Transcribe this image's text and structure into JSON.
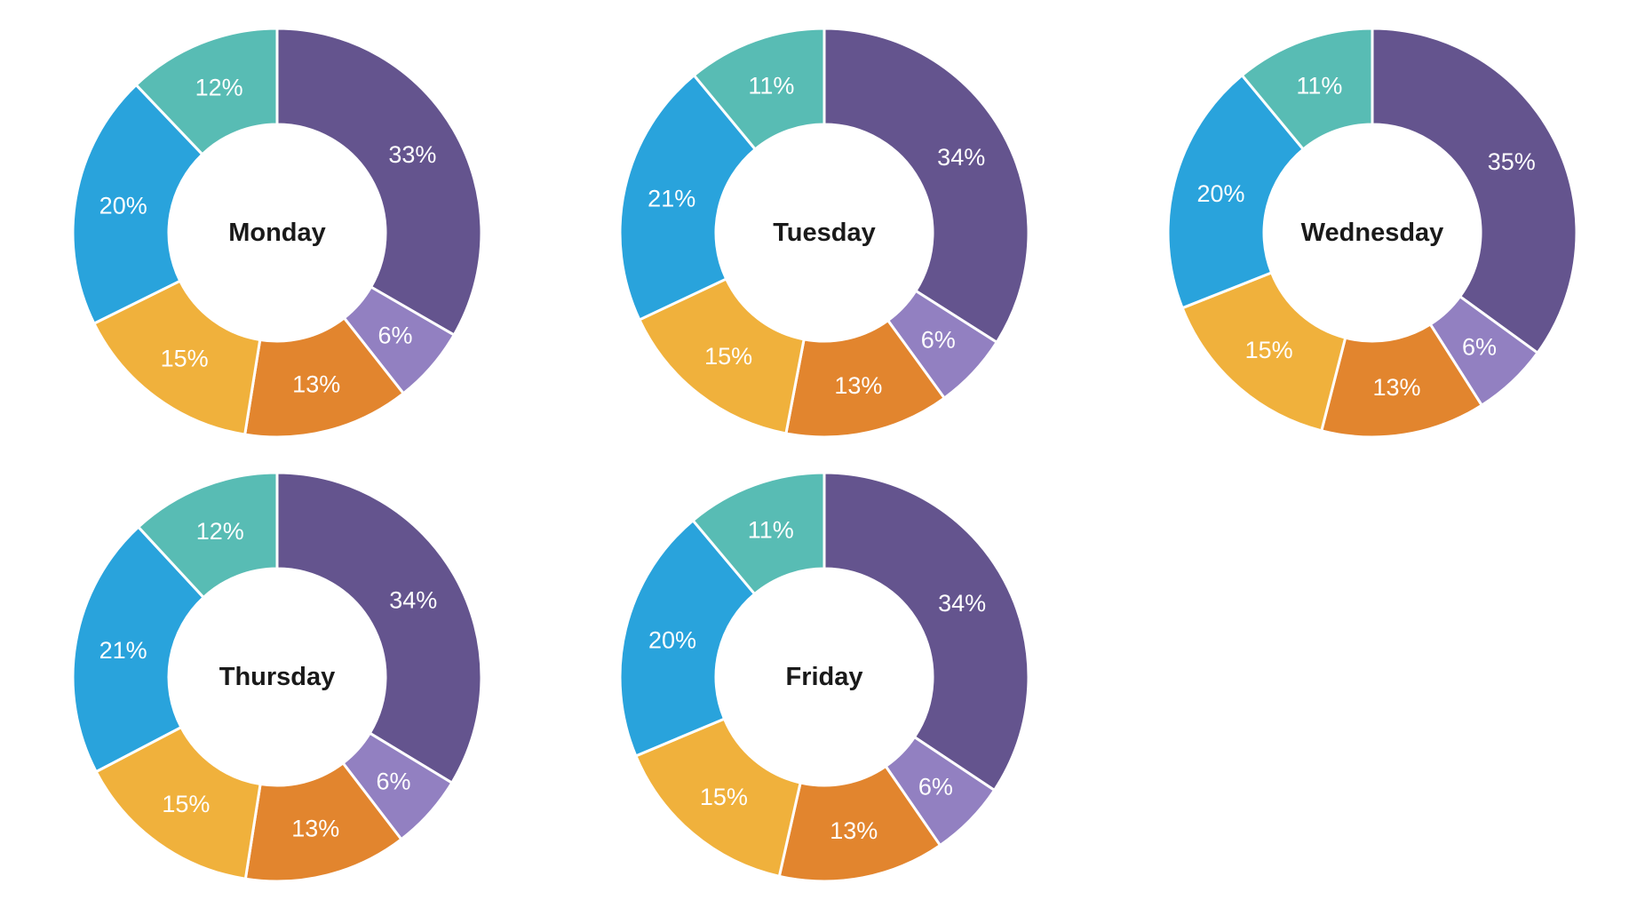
{
  "page": {
    "background_color": "#ffffff"
  },
  "chart_data": {
    "type": "pie",
    "subtype": "donut_small_multiples",
    "unit": "percent",
    "legend": "none",
    "label_format": "{value}%",
    "direction": "clockwise",
    "start_angle_deg": 0,
    "donut_hole_ratio": 0.53,
    "segment_label_color": "#ffffff",
    "title_color": "#1a1a1a",
    "segment_colors": [
      "#64548E",
      "#9280C1",
      "#E2852E",
      "#F0B13C",
      "#29A3DC",
      "#58BCB4"
    ],
    "segment_color_names": [
      "dark-purple",
      "light-purple",
      "orange",
      "amber",
      "blue",
      "teal"
    ],
    "charts": [
      {
        "title": "Monday",
        "values": [
          33,
          6,
          13,
          15,
          20,
          12
        ],
        "labels": [
          "33%",
          "6%",
          "13%",
          "15%",
          "20%",
          "12%"
        ]
      },
      {
        "title": "Tuesday",
        "values": [
          34,
          6,
          13,
          15,
          21,
          11
        ],
        "labels": [
          "34%",
          "6%",
          "13%",
          "15%",
          "21%",
          "11%"
        ]
      },
      {
        "title": "Wednesday",
        "values": [
          35,
          6,
          13,
          15,
          20,
          11
        ],
        "labels": [
          "35%",
          "6%",
          "13%",
          "15%",
          "20%",
          "11%"
        ]
      },
      {
        "title": "Thursday",
        "values": [
          34,
          6,
          13,
          15,
          21,
          12
        ],
        "labels": [
          "34%",
          "6%",
          "13%",
          "15%",
          "21%",
          "12%"
        ]
      },
      {
        "title": "Friday",
        "values": [
          34,
          6,
          13,
          15,
          20,
          11
        ],
        "labels": [
          "34%",
          "6%",
          "13%",
          "15%",
          "20%",
          "11%"
        ]
      }
    ]
  }
}
